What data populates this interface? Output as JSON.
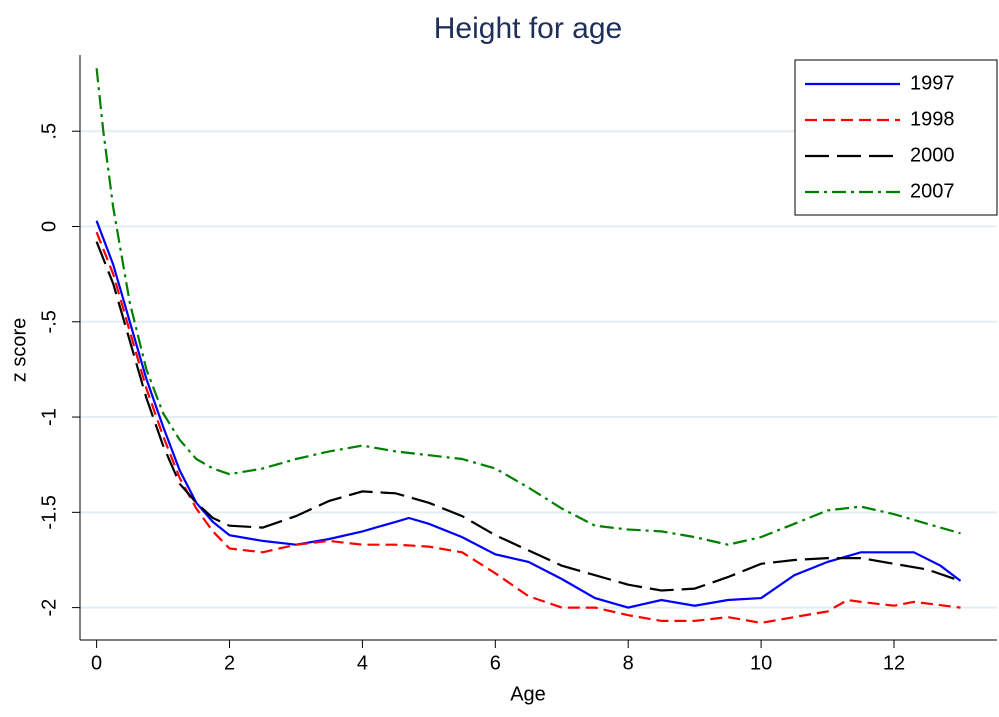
{
  "chart_data": {
    "type": "line",
    "title": "Height for age",
    "xlabel": "Age",
    "ylabel": "z score",
    "xlim": [
      -0.25,
      13.55
    ],
    "ylim": [
      -2.17,
      0.9
    ],
    "xticks": [
      0,
      2,
      4,
      6,
      8,
      10,
      12
    ],
    "yticks": [
      {
        "value": 0.5,
        "label": ".5"
      },
      0,
      {
        "value": -0.5,
        "label": "-.5"
      },
      -1,
      {
        "value": -1.5,
        "label": "-1.5"
      },
      -2
    ],
    "grid": true,
    "legend": "top-right",
    "series": [
      {
        "name": "1997",
        "color": "#0000ff",
        "dash": "solid",
        "x": [
          0,
          0.25,
          0.5,
          0.75,
          1,
          1.25,
          1.5,
          1.75,
          2,
          2.5,
          3,
          3.5,
          4,
          4.5,
          4.7,
          5,
          5.5,
          6,
          6.5,
          7,
          7.5,
          8,
          8.5,
          9,
          9.5,
          10,
          10.5,
          11,
          11.5,
          12,
          12.3,
          12.7,
          13
        ],
        "values": [
          0.03,
          -0.2,
          -0.5,
          -0.8,
          -1.05,
          -1.28,
          -1.45,
          -1.55,
          -1.62,
          -1.65,
          -1.67,
          -1.64,
          -1.6,
          -1.55,
          -1.53,
          -1.56,
          -1.63,
          -1.72,
          -1.76,
          -1.85,
          -1.95,
          -2.0,
          -1.96,
          -1.99,
          -1.96,
          -1.95,
          -1.83,
          -1.76,
          -1.71,
          -1.71,
          -1.71,
          -1.78,
          -1.86
        ]
      },
      {
        "name": "1998",
        "color": "#ff0000",
        "dash": "dash",
        "x": [
          0,
          0.25,
          0.5,
          0.75,
          1,
          1.25,
          1.5,
          1.75,
          2,
          2.5,
          3,
          3.5,
          4,
          4.5,
          5,
          5.5,
          6,
          6.5,
          7,
          7.5,
          8,
          8.5,
          9,
          9.5,
          10,
          10.5,
          11,
          11.3,
          11.5,
          12,
          12.3,
          13
        ],
        "values": [
          -0.03,
          -0.25,
          -0.55,
          -0.85,
          -1.1,
          -1.32,
          -1.48,
          -1.6,
          -1.69,
          -1.71,
          -1.67,
          -1.65,
          -1.67,
          -1.67,
          -1.68,
          -1.71,
          -1.82,
          -1.94,
          -2.0,
          -2.0,
          -2.04,
          -2.07,
          -2.07,
          -2.05,
          -2.08,
          -2.05,
          -2.02,
          -1.96,
          -1.97,
          -1.99,
          -1.97,
          -2.0
        ]
      },
      {
        "name": "2000",
        "color": "#000000",
        "dash": "longdash",
        "x": [
          0,
          0.25,
          0.5,
          0.75,
          1,
          1.25,
          1.5,
          1.75,
          2,
          2.5,
          3,
          3.5,
          4,
          4.5,
          5,
          5.5,
          6,
          6.5,
          7,
          7.5,
          8,
          8.5,
          9,
          9.5,
          10,
          10.5,
          11,
          11.5,
          12,
          12.5,
          13
        ],
        "values": [
          -0.08,
          -0.3,
          -0.6,
          -0.9,
          -1.15,
          -1.35,
          -1.45,
          -1.53,
          -1.57,
          -1.58,
          -1.52,
          -1.44,
          -1.39,
          -1.4,
          -1.45,
          -1.52,
          -1.62,
          -1.7,
          -1.78,
          -1.83,
          -1.88,
          -1.91,
          -1.9,
          -1.84,
          -1.77,
          -1.75,
          -1.74,
          -1.74,
          -1.77,
          -1.8,
          -1.86
        ]
      },
      {
        "name": "2007",
        "color": "#008000",
        "dash": "dashdot",
        "x": [
          0,
          0.1,
          0.25,
          0.5,
          0.75,
          1,
          1.25,
          1.5,
          1.75,
          2,
          2.5,
          3,
          3.5,
          4,
          4.5,
          5,
          5.5,
          6,
          6.5,
          7,
          7.5,
          8,
          8.5,
          9,
          9.5,
          10,
          10.5,
          11,
          11.5,
          12,
          12.5,
          13
        ],
        "values": [
          0.83,
          0.5,
          0.1,
          -0.4,
          -0.75,
          -0.98,
          -1.12,
          -1.22,
          -1.27,
          -1.3,
          -1.27,
          -1.22,
          -1.18,
          -1.15,
          -1.18,
          -1.2,
          -1.22,
          -1.27,
          -1.37,
          -1.48,
          -1.57,
          -1.59,
          -1.6,
          -1.63,
          -1.67,
          -1.63,
          -1.56,
          -1.49,
          -1.47,
          -1.51,
          -1.56,
          -1.61
        ]
      }
    ]
  }
}
